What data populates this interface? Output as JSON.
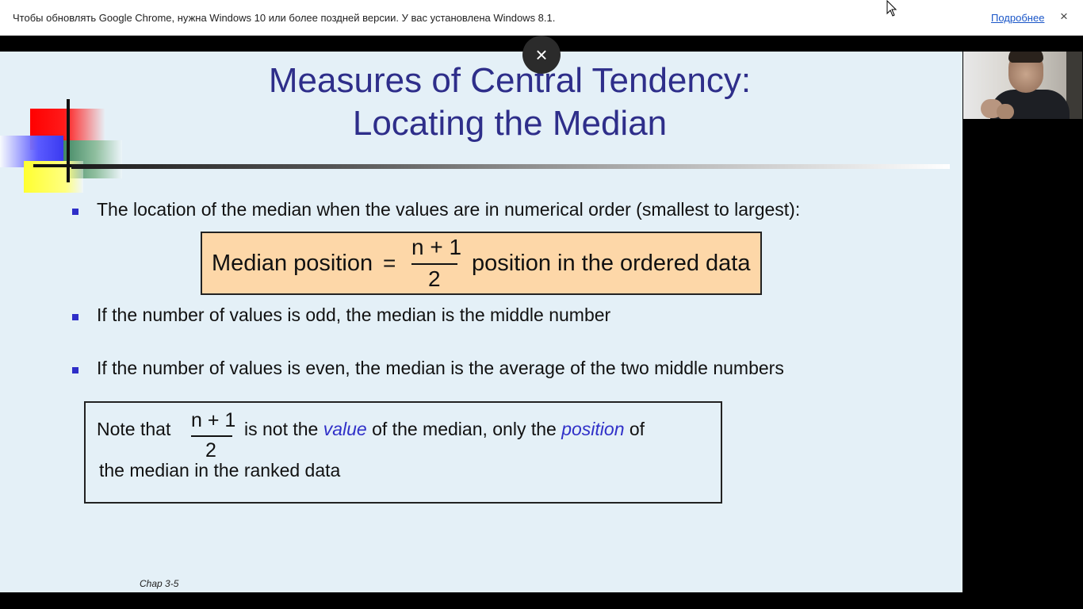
{
  "infobar": {
    "message": "Чтобы обновлять Google Chrome, нужна Windows 10 или более поздней версии. У вас установлена Windows 8.1.",
    "link_label": "Подробнее",
    "close_icon": "×"
  },
  "overlay": {
    "close_icon": "×"
  },
  "slide": {
    "title_line1": "Measures of Central Tendency:",
    "title_line2": "Locating the Median",
    "bullets": [
      "The location of the median when the values are in numerical order (smallest to largest):",
      "If the number of values is odd, the median is the middle number",
      "If the number of values is even, the median is the average of the two middle numbers"
    ],
    "formula": {
      "label": "Median position",
      "equals": "=",
      "numerator": "n + 1",
      "denominator": "2",
      "suffix": "position in the ordered data"
    },
    "note": {
      "prefix": "Note that",
      "numerator": "n + 1",
      "denominator": "2",
      "part1": "is not the",
      "value_word": "value",
      "part2": "of the median, only the",
      "position_word": "position",
      "part3": "of",
      "line2": "the median in the ranked data"
    },
    "footer": "Chap 3-5"
  },
  "colors": {
    "title": "#2e2e8a",
    "bullet": "#2e2ec8",
    "formula_bg": "#fdd7a8",
    "slide_bg": "#e4f0f7",
    "emphasis": "#3030c8"
  }
}
